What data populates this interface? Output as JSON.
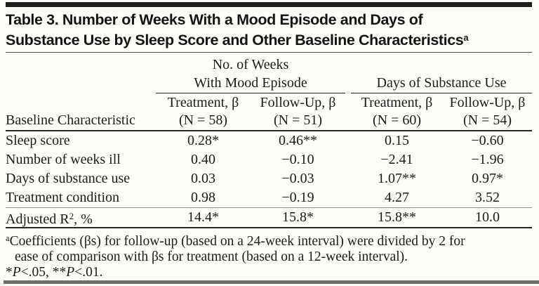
{
  "title": {
    "line1": "Table 3. Number of Weeks With a Mood Episode and Days of",
    "line2": "Substance Use by Sleep Score and Other Baseline Characteristics",
    "superscript": "a"
  },
  "table": {
    "span_headers": {
      "mood": "No. of Weeks\nWith Mood Episode",
      "substance": "Days of Substance Use"
    },
    "row_header": "Baseline Characteristic",
    "col_headers": [
      "Treatment, β\n(N = 58)",
      "Follow-Up, β\n(N = 51)",
      "Treatment, β\n(N = 60)",
      "Follow-Up, β\n(N = 54)"
    ],
    "rows": [
      {
        "label": "Sleep score",
        "values": [
          "0.28*",
          "0.46**",
          "0.15",
          "−0.60"
        ]
      },
      {
        "label": "Number of weeks ill",
        "values": [
          "0.40",
          "−0.10",
          "−2.41",
          "−1.96"
        ]
      },
      {
        "label": "Days of substance use",
        "values": [
          "0.03",
          "−0.03",
          "1.07**",
          "0.97*"
        ]
      },
      {
        "label": "Treatment condition",
        "values": [
          "0.98",
          "−0.19",
          "4.27",
          "3.52"
        ]
      }
    ],
    "summary_row": {
      "label_pre": "Adjusted R",
      "label_sup": "2",
      "label_post": ", %",
      "values": [
        "14.4*",
        "15.8*",
        "15.8**",
        "10.0"
      ]
    }
  },
  "footnotes": {
    "marker": "a",
    "line1": "Coefficients (βs) for follow-up (based on a 24-week interval) were divided by 2 for",
    "line2": "ease of comparison with βs for treatment (based on a 12-week interval).",
    "sig": {
      "star1": "*",
      "p1": "P",
      "rest1": "<.05, ",
      "star2": "**",
      "p2": "P",
      "rest2": "<.01."
    }
  },
  "colors": {
    "top_bar": "#1f1f1f",
    "bottom_bar": "#71716c",
    "text": "#1b1b1b",
    "background": "#fdfdfa",
    "heavy_rule": "#262626",
    "light_rule": "#909090"
  }
}
